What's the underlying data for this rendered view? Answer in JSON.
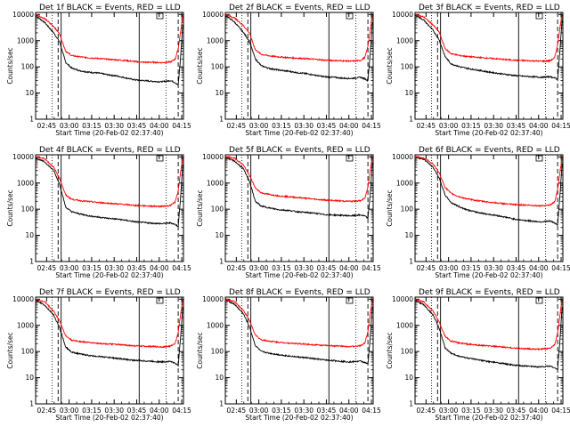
{
  "page": {
    "background": "#ffffff"
  },
  "colors": {
    "events": "#000000",
    "lld": "#ff0000",
    "axis": "#000000"
  },
  "shared_axes": {
    "ylabel": "Counts/sec",
    "xlabel": "Start Time (20-Feb-02 02:37:40)",
    "y_scale": "log",
    "y_ticks": [
      1,
      10,
      100,
      1000,
      10000
    ],
    "y_tick_labels": [
      "1",
      "10",
      "100",
      "1000",
      "10000"
    ],
    "ylim": [
      1,
      12000
    ],
    "x_ticks": [
      "02:45",
      "03:00",
      "03:15",
      "03:30",
      "03:45",
      "04:00",
      "04:15"
    ],
    "x_ticks_minutes": [
      7.33,
      22.33,
      37.33,
      52.33,
      67.33,
      82.33,
      97.33
    ],
    "xlim_minutes": [
      0,
      98.5
    ]
  },
  "chart_data": [
    {
      "type": "line",
      "title": "Det 1f BLACK = Events, RED = LLD",
      "series": [
        {
          "name": "Events",
          "color": "#000000",
          "x_minutes": [
            0,
            6,
            12,
            16,
            20,
            24,
            30,
            36,
            42,
            48,
            54,
            60,
            66,
            72,
            78,
            84,
            90,
            93,
            95,
            96.5,
            98
          ],
          "values": [
            9000,
            5000,
            2000,
            900,
            150,
            90,
            70,
            62,
            58,
            50,
            45,
            38,
            32,
            30,
            28,
            27,
            30,
            25,
            20,
            200,
            4000
          ]
        },
        {
          "name": "LLD",
          "color": "#ff0000",
          "x_minutes": [
            0,
            6,
            12,
            16,
            20,
            24,
            30,
            36,
            42,
            48,
            54,
            60,
            66,
            72,
            78,
            84,
            90,
            93,
            95,
            96.5,
            98
          ],
          "values": [
            10000,
            7000,
            3500,
            1800,
            400,
            270,
            240,
            220,
            210,
            195,
            185,
            175,
            160,
            150,
            150,
            145,
            155,
            200,
            500,
            2000,
            9000
          ]
        }
      ],
      "markers": {
        "dotted": [
          11,
          87
        ],
        "dashed": [
          15,
          95
        ],
        "solid": [
          17,
          69
        ]
      }
    },
    {
      "type": "line",
      "title": "Det 2f BLACK = Events, RED = LLD",
      "series": [
        {
          "name": "Events",
          "color": "#000000",
          "x_minutes": [
            0,
            6,
            12,
            16,
            20,
            24,
            30,
            36,
            42,
            48,
            54,
            60,
            66,
            72,
            78,
            84,
            90,
            93,
            95,
            96.5,
            98
          ],
          "values": [
            9500,
            5200,
            2100,
            950,
            200,
            110,
            85,
            75,
            68,
            60,
            55,
            48,
            42,
            40,
            37,
            36,
            40,
            35,
            30,
            300,
            5000
          ]
        },
        {
          "name": "LLD",
          "color": "#ff0000",
          "x_minutes": [
            0,
            6,
            12,
            16,
            20,
            24,
            30,
            36,
            42,
            48,
            54,
            60,
            66,
            72,
            78,
            84,
            90,
            93,
            95,
            96.5,
            98
          ],
          "values": [
            10000,
            7500,
            3800,
            2000,
            450,
            300,
            260,
            240,
            225,
            215,
            205,
            195,
            180,
            175,
            170,
            165,
            175,
            230,
            600,
            2500,
            9500
          ]
        }
      ],
      "markers": {
        "dotted": [
          11,
          87
        ],
        "dashed": [
          15,
          95
        ],
        "solid": [
          17,
          69
        ]
      }
    },
    {
      "type": "line",
      "title": "Det 3f BLACK = Events, RED = LLD",
      "series": [
        {
          "name": "Events",
          "color": "#000000",
          "x_minutes": [
            0,
            6,
            12,
            16,
            20,
            24,
            30,
            36,
            42,
            48,
            54,
            60,
            66,
            72,
            78,
            84,
            90,
            93,
            95,
            96.5,
            98
          ],
          "values": [
            9800,
            6000,
            2500,
            1100,
            250,
            130,
            100,
            85,
            75,
            65,
            58,
            52,
            47,
            44,
            42,
            40,
            42,
            38,
            33,
            400,
            6000
          ]
        },
        {
          "name": "LLD",
          "color": "#ff0000",
          "x_minutes": [
            0,
            6,
            12,
            16,
            20,
            24,
            30,
            36,
            42,
            48,
            54,
            60,
            66,
            72,
            78,
            84,
            90,
            93,
            95,
            96.5,
            98
          ],
          "values": [
            10000,
            8000,
            4000,
            2200,
            500,
            320,
            270,
            245,
            230,
            215,
            205,
            190,
            180,
            175,
            170,
            165,
            170,
            220,
            700,
            3000,
            9800
          ]
        }
      ],
      "markers": {
        "dotted": [
          11,
          87
        ],
        "dashed": [
          15,
          95
        ],
        "solid": [
          17,
          69
        ]
      }
    },
    {
      "type": "line",
      "title": "Det 4f BLACK = Events, RED = LLD",
      "series": [
        {
          "name": "Events",
          "color": "#000000",
          "x_minutes": [
            0,
            6,
            12,
            16,
            20,
            24,
            30,
            36,
            42,
            48,
            54,
            60,
            66,
            72,
            78,
            84,
            90,
            93,
            95,
            96.5,
            98
          ],
          "values": [
            9000,
            6500,
            3000,
            900,
            120,
            80,
            65,
            55,
            50,
            45,
            42,
            38,
            33,
            31,
            29,
            28,
            30,
            26,
            22,
            250,
            5000
          ]
        },
        {
          "name": "LLD",
          "color": "#ff0000",
          "x_minutes": [
            0,
            6,
            12,
            16,
            20,
            24,
            30,
            36,
            42,
            48,
            54,
            60,
            66,
            72,
            78,
            84,
            90,
            93,
            95,
            96.5,
            98
          ],
          "values": [
            10000,
            8500,
            4000,
            1500,
            350,
            240,
            210,
            195,
            180,
            170,
            160,
            150,
            140,
            135,
            130,
            128,
            140,
            190,
            500,
            2500,
            9500
          ]
        }
      ],
      "markers": {
        "dotted": [
          11,
          87
        ],
        "dashed": [
          15,
          95
        ],
        "solid": [
          17,
          69
        ]
      }
    },
    {
      "type": "line",
      "title": "Det 5f BLACK = Events, RED = LLD",
      "series": [
        {
          "name": "Events",
          "color": "#000000",
          "x_minutes": [
            0,
            6,
            12,
            16,
            20,
            24,
            30,
            36,
            42,
            48,
            54,
            60,
            66,
            72,
            78,
            84,
            90,
            93,
            95,
            96.5,
            98
          ],
          "values": [
            9500,
            7000,
            3500,
            1200,
            200,
            130,
            110,
            95,
            90,
            80,
            75,
            70,
            62,
            60,
            58,
            56,
            60,
            55,
            45,
            350,
            6000
          ]
        },
        {
          "name": "LLD",
          "color": "#ff0000",
          "x_minutes": [
            0,
            6,
            12,
            16,
            20,
            24,
            30,
            36,
            42,
            48,
            54,
            60,
            66,
            72,
            78,
            84,
            90,
            93,
            95,
            96.5,
            98
          ],
          "values": [
            10000,
            9000,
            5000,
            2000,
            650,
            420,
            360,
            320,
            300,
            280,
            260,
            240,
            225,
            215,
            205,
            200,
            210,
            260,
            700,
            3000,
            9800
          ]
        }
      ],
      "markers": {
        "dotted": [
          11,
          87
        ],
        "dashed": [
          15,
          95
        ],
        "solid": [
          17,
          69
        ]
      }
    },
    {
      "type": "line",
      "title": "Det 6f BLACK = Events, RED = LLD",
      "series": [
        {
          "name": "Events",
          "color": "#000000",
          "x_minutes": [
            0,
            6,
            12,
            16,
            20,
            24,
            30,
            36,
            42,
            48,
            54,
            60,
            66,
            72,
            78,
            84,
            90,
            93,
            95,
            96.5,
            98
          ],
          "values": [
            9800,
            8000,
            4000,
            1600,
            350,
            180,
            120,
            90,
            75,
            65,
            58,
            50,
            42,
            38,
            35,
            33,
            35,
            30,
            25,
            300,
            5500
          ]
        },
        {
          "name": "LLD",
          "color": "#ff0000",
          "x_minutes": [
            0,
            6,
            12,
            16,
            20,
            24,
            30,
            36,
            42,
            48,
            54,
            60,
            66,
            72,
            78,
            84,
            90,
            93,
            95,
            96.5,
            98
          ],
          "values": [
            10000,
            9000,
            5500,
            2500,
            700,
            400,
            290,
            240,
            210,
            190,
            175,
            160,
            150,
            145,
            140,
            135,
            145,
            190,
            550,
            2500,
            9500
          ]
        }
      ],
      "markers": {
        "dotted": [
          11,
          87
        ],
        "dashed": [
          15,
          95
        ],
        "solid": [
          17,
          69
        ]
      }
    },
    {
      "type": "line",
      "title": "Det 7f BLACK = Events, RED = LLD",
      "series": [
        {
          "name": "Events",
          "color": "#000000",
          "x_minutes": [
            0,
            6,
            12,
            16,
            20,
            24,
            30,
            36,
            42,
            48,
            54,
            60,
            66,
            72,
            78,
            84,
            90,
            93,
            95,
            96.5,
            98
          ],
          "values": [
            9500,
            6000,
            2500,
            800,
            150,
            95,
            80,
            70,
            65,
            60,
            55,
            50,
            46,
            44,
            42,
            40,
            42,
            35,
            30,
            300,
            5000
          ]
        },
        {
          "name": "LLD",
          "color": "#ff0000",
          "x_minutes": [
            0,
            6,
            12,
            16,
            20,
            24,
            30,
            36,
            42,
            48,
            54,
            60,
            66,
            72,
            78,
            84,
            90,
            93,
            95,
            96.5,
            98
          ],
          "values": [
            10000,
            8000,
            3500,
            1500,
            400,
            270,
            240,
            220,
            205,
            195,
            185,
            175,
            165,
            160,
            155,
            150,
            160,
            210,
            550,
            2500,
            9500
          ]
        }
      ],
      "markers": {
        "dotted": [
          11,
          87
        ],
        "dashed": [
          15,
          95
        ],
        "solid": [
          17,
          69
        ]
      }
    },
    {
      "type": "line",
      "title": "Det 8f BLACK = Events, RED = LLD",
      "series": [
        {
          "name": "Events",
          "color": "#000000",
          "x_minutes": [
            0,
            6,
            12,
            16,
            20,
            24,
            30,
            36,
            42,
            48,
            54,
            60,
            66,
            72,
            78,
            84,
            90,
            93,
            95,
            96.5,
            98
          ],
          "values": [
            9500,
            6500,
            2800,
            900,
            170,
            100,
            85,
            75,
            68,
            62,
            58,
            52,
            48,
            45,
            42,
            40,
            43,
            38,
            33,
            320,
            5200
          ]
        },
        {
          "name": "LLD",
          "color": "#ff0000",
          "x_minutes": [
            0,
            6,
            12,
            16,
            20,
            24,
            30,
            36,
            42,
            48,
            54,
            60,
            66,
            72,
            78,
            84,
            90,
            93,
            95,
            96.5,
            98
          ],
          "values": [
            10000,
            8200,
            3800,
            1600,
            420,
            280,
            245,
            225,
            210,
            200,
            190,
            180,
            170,
            165,
            160,
            155,
            165,
            215,
            600,
            2700,
            9600
          ]
        }
      ],
      "markers": {
        "dotted": [
          11,
          87
        ],
        "dashed": [
          15,
          95
        ],
        "solid": [
          17,
          69
        ]
      }
    },
    {
      "type": "line",
      "title": "Det 9f BLACK = Events, RED = LLD",
      "series": [
        {
          "name": "Events",
          "color": "#000000",
          "x_minutes": [
            0,
            6,
            12,
            16,
            20,
            24,
            30,
            36,
            42,
            48,
            54,
            60,
            66,
            72,
            78,
            84,
            90,
            93,
            95,
            96.5,
            98
          ],
          "values": [
            9000,
            6000,
            2500,
            800,
            140,
            85,
            65,
            55,
            48,
            42,
            38,
            34,
            30,
            28,
            27,
            26,
            28,
            24,
            20,
            250,
            4800
          ]
        },
        {
          "name": "LLD",
          "color": "#ff0000",
          "x_minutes": [
            0,
            6,
            12,
            16,
            20,
            24,
            30,
            36,
            42,
            48,
            54,
            60,
            66,
            72,
            78,
            84,
            90,
            93,
            95,
            96.5,
            98
          ],
          "values": [
            10000,
            7800,
            3500,
            1400,
            380,
            250,
            210,
            190,
            175,
            165,
            155,
            145,
            135,
            130,
            125,
            122,
            135,
            185,
            500,
            2400,
            9400
          ]
        }
      ],
      "markers": {
        "dotted": [
          11,
          87
        ],
        "dashed": [
          15,
          95
        ],
        "solid": [
          17,
          69
        ]
      }
    }
  ]
}
